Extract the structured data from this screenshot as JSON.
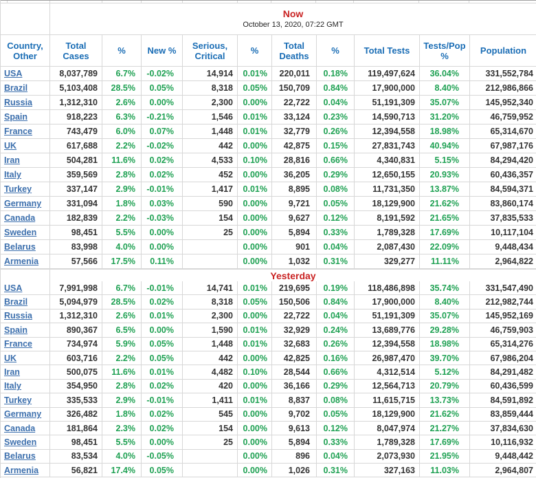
{
  "colors": {
    "accent_red": "#c92222",
    "header_blue": "#1a6db5",
    "link_blue": "#3c6fad",
    "green": "#1fa153",
    "number_dark": "#333333",
    "border": "#d7d7d7"
  },
  "header": {
    "columns": [
      "Country, Other",
      "Total Cases",
      "%",
      "New %",
      "Serious, Critical",
      "%",
      "Total Deaths",
      "%",
      "Total Tests",
      "Tests/Pop %",
      "Population"
    ]
  },
  "sections": [
    {
      "id": "now",
      "title": "Now",
      "subtitle": "October 13, 2020, 07:22 GMT",
      "rows": [
        {
          "country": "USA",
          "total_cases": "8,037,789",
          "cases_pct": "6.7%",
          "new_pct": "-0.02%",
          "serious": "14,914",
          "serious_pct": "0.01%",
          "deaths": "220,011",
          "deaths_pct": "0.18%",
          "tests": "119,497,624",
          "tests_pop_pct": "36.04%",
          "population": "331,552,784"
        },
        {
          "country": "Brazil",
          "total_cases": "5,103,408",
          "cases_pct": "28.5%",
          "new_pct": "0.05%",
          "serious": "8,318",
          "serious_pct": "0.05%",
          "deaths": "150,709",
          "deaths_pct": "0.84%",
          "tests": "17,900,000",
          "tests_pop_pct": "8.40%",
          "population": "212,986,866"
        },
        {
          "country": "Russia",
          "total_cases": "1,312,310",
          "cases_pct": "2.6%",
          "new_pct": "0.00%",
          "serious": "2,300",
          "serious_pct": "0.00%",
          "deaths": "22,722",
          "deaths_pct": "0.04%",
          "tests": "51,191,309",
          "tests_pop_pct": "35.07%",
          "population": "145,952,340"
        },
        {
          "country": "Spain",
          "total_cases": "918,223",
          "cases_pct": "6.3%",
          "new_pct": "-0.21%",
          "serious": "1,546",
          "serious_pct": "0.01%",
          "deaths": "33,124",
          "deaths_pct": "0.23%",
          "tests": "14,590,713",
          "tests_pop_pct": "31.20%",
          "population": "46,759,952"
        },
        {
          "country": "France",
          "total_cases": "743,479",
          "cases_pct": "6.0%",
          "new_pct": "0.07%",
          "serious": "1,448",
          "serious_pct": "0.01%",
          "deaths": "32,779",
          "deaths_pct": "0.26%",
          "tests": "12,394,558",
          "tests_pop_pct": "18.98%",
          "population": "65,314,670"
        },
        {
          "country": "UK",
          "total_cases": "617,688",
          "cases_pct": "2.2%",
          "new_pct": "-0.02%",
          "serious": "442",
          "serious_pct": "0.00%",
          "deaths": "42,875",
          "deaths_pct": "0.15%",
          "tests": "27,831,743",
          "tests_pop_pct": "40.94%",
          "population": "67,987,176"
        },
        {
          "country": "Iran",
          "total_cases": "504,281",
          "cases_pct": "11.6%",
          "new_pct": "0.02%",
          "serious": "4,533",
          "serious_pct": "0.10%",
          "deaths": "28,816",
          "deaths_pct": "0.66%",
          "tests": "4,340,831",
          "tests_pop_pct": "5.15%",
          "population": "84,294,420"
        },
        {
          "country": "Italy",
          "total_cases": "359,569",
          "cases_pct": "2.8%",
          "new_pct": "0.02%",
          "serious": "452",
          "serious_pct": "0.00%",
          "deaths": "36,205",
          "deaths_pct": "0.29%",
          "tests": "12,650,155",
          "tests_pop_pct": "20.93%",
          "population": "60,436,357"
        },
        {
          "country": "Turkey",
          "total_cases": "337,147",
          "cases_pct": "2.9%",
          "new_pct": "-0.01%",
          "serious": "1,417",
          "serious_pct": "0.01%",
          "deaths": "8,895",
          "deaths_pct": "0.08%",
          "tests": "11,731,350",
          "tests_pop_pct": "13.87%",
          "population": "84,594,371"
        },
        {
          "country": "Germany",
          "total_cases": "331,094",
          "cases_pct": "1.8%",
          "new_pct": "0.03%",
          "serious": "590",
          "serious_pct": "0.00%",
          "deaths": "9,721",
          "deaths_pct": "0.05%",
          "tests": "18,129,900",
          "tests_pop_pct": "21.62%",
          "population": "83,860,174"
        },
        {
          "country": "Canada",
          "total_cases": "182,839",
          "cases_pct": "2.2%",
          "new_pct": "-0.03%",
          "serious": "154",
          "serious_pct": "0.00%",
          "deaths": "9,627",
          "deaths_pct": "0.12%",
          "tests": "8,191,592",
          "tests_pop_pct": "21.65%",
          "population": "37,835,533"
        },
        {
          "country": "Sweden",
          "total_cases": "98,451",
          "cases_pct": "5.5%",
          "new_pct": "0.00%",
          "serious": "25",
          "serious_pct": "0.00%",
          "deaths": "5,894",
          "deaths_pct": "0.33%",
          "tests": "1,789,328",
          "tests_pop_pct": "17.69%",
          "population": "10,117,104"
        },
        {
          "country": "Belarus",
          "total_cases": "83,998",
          "cases_pct": "4.0%",
          "new_pct": "0.00%",
          "serious": "",
          "serious_pct": "0.00%",
          "deaths": "901",
          "deaths_pct": "0.04%",
          "tests": "2,087,430",
          "tests_pop_pct": "22.09%",
          "population": "9,448,434"
        },
        {
          "country": "Armenia",
          "total_cases": "57,566",
          "cases_pct": "17.5%",
          "new_pct": "0.11%",
          "serious": "",
          "serious_pct": "0.00%",
          "deaths": "1,032",
          "deaths_pct": "0.31%",
          "tests": "329,277",
          "tests_pop_pct": "11.11%",
          "population": "2,964,822"
        }
      ]
    },
    {
      "id": "yesterday",
      "title": "Yesterday",
      "subtitle": "",
      "rows": [
        {
          "country": "USA",
          "total_cases": "7,991,998",
          "cases_pct": "6.7%",
          "new_pct": "-0.01%",
          "serious": "14,741",
          "serious_pct": "0.01%",
          "deaths": "219,695",
          "deaths_pct": "0.19%",
          "tests": "118,486,898",
          "tests_pop_pct": "35.74%",
          "population": "331,547,490"
        },
        {
          "country": "Brazil",
          "total_cases": "5,094,979",
          "cases_pct": "28.5%",
          "new_pct": "0.02%",
          "serious": "8,318",
          "serious_pct": "0.05%",
          "deaths": "150,506",
          "deaths_pct": "0.84%",
          "tests": "17,900,000",
          "tests_pop_pct": "8.40%",
          "population": "212,982,744"
        },
        {
          "country": "Russia",
          "total_cases": "1,312,310",
          "cases_pct": "2.6%",
          "new_pct": "0.01%",
          "serious": "2,300",
          "serious_pct": "0.00%",
          "deaths": "22,722",
          "deaths_pct": "0.04%",
          "tests": "51,191,309",
          "tests_pop_pct": "35.07%",
          "population": "145,952,169"
        },
        {
          "country": "Spain",
          "total_cases": "890,367",
          "cases_pct": "6.5%",
          "new_pct": "0.00%",
          "serious": "1,590",
          "serious_pct": "0.01%",
          "deaths": "32,929",
          "deaths_pct": "0.24%",
          "tests": "13,689,776",
          "tests_pop_pct": "29.28%",
          "population": "46,759,903"
        },
        {
          "country": "France",
          "total_cases": "734,974",
          "cases_pct": "5.9%",
          "new_pct": "0.05%",
          "serious": "1,448",
          "serious_pct": "0.01%",
          "deaths": "32,683",
          "deaths_pct": "0.26%",
          "tests": "12,394,558",
          "tests_pop_pct": "18.98%",
          "population": "65,314,276"
        },
        {
          "country": "UK",
          "total_cases": "603,716",
          "cases_pct": "2.2%",
          "new_pct": "0.05%",
          "serious": "442",
          "serious_pct": "0.00%",
          "deaths": "42,825",
          "deaths_pct": "0.16%",
          "tests": "26,987,470",
          "tests_pop_pct": "39.70%",
          "population": "67,986,204"
        },
        {
          "country": "Iran",
          "total_cases": "500,075",
          "cases_pct": "11.6%",
          "new_pct": "0.01%",
          "serious": "4,482",
          "serious_pct": "0.10%",
          "deaths": "28,544",
          "deaths_pct": "0.66%",
          "tests": "4,312,514",
          "tests_pop_pct": "5.12%",
          "population": "84,291,482"
        },
        {
          "country": "Italy",
          "total_cases": "354,950",
          "cases_pct": "2.8%",
          "new_pct": "0.02%",
          "serious": "420",
          "serious_pct": "0.00%",
          "deaths": "36,166",
          "deaths_pct": "0.29%",
          "tests": "12,564,713",
          "tests_pop_pct": "20.79%",
          "population": "60,436,599"
        },
        {
          "country": "Turkey",
          "total_cases": "335,533",
          "cases_pct": "2.9%",
          "new_pct": "-0.01%",
          "serious": "1,411",
          "serious_pct": "0.01%",
          "deaths": "8,837",
          "deaths_pct": "0.08%",
          "tests": "11,615,715",
          "tests_pop_pct": "13.73%",
          "population": "84,591,892"
        },
        {
          "country": "Germany",
          "total_cases": "326,482",
          "cases_pct": "1.8%",
          "new_pct": "0.02%",
          "serious": "545",
          "serious_pct": "0.00%",
          "deaths": "9,702",
          "deaths_pct": "0.05%",
          "tests": "18,129,900",
          "tests_pop_pct": "21.62%",
          "population": "83,859,444"
        },
        {
          "country": "Canada",
          "total_cases": "181,864",
          "cases_pct": "2.3%",
          "new_pct": "0.02%",
          "serious": "154",
          "serious_pct": "0.00%",
          "deaths": "9,613",
          "deaths_pct": "0.12%",
          "tests": "8,047,974",
          "tests_pop_pct": "21.27%",
          "population": "37,834,630"
        },
        {
          "country": "Sweden",
          "total_cases": "98,451",
          "cases_pct": "5.5%",
          "new_pct": "0.00%",
          "serious": "25",
          "serious_pct": "0.00%",
          "deaths": "5,894",
          "deaths_pct": "0.33%",
          "tests": "1,789,328",
          "tests_pop_pct": "17.69%",
          "population": "10,116,932"
        },
        {
          "country": "Belarus",
          "total_cases": "83,534",
          "cases_pct": "4.0%",
          "new_pct": "-0.05%",
          "serious": "",
          "serious_pct": "0.00%",
          "deaths": "896",
          "deaths_pct": "0.04%",
          "tests": "2,073,930",
          "tests_pop_pct": "21.95%",
          "population": "9,448,442"
        },
        {
          "country": "Armenia",
          "total_cases": "56,821",
          "cases_pct": "17.4%",
          "new_pct": "0.05%",
          "serious": "",
          "serious_pct": "0.00%",
          "deaths": "1,026",
          "deaths_pct": "0.31%",
          "tests": "327,163",
          "tests_pop_pct": "11.03%",
          "population": "2,964,807"
        }
      ]
    }
  ]
}
